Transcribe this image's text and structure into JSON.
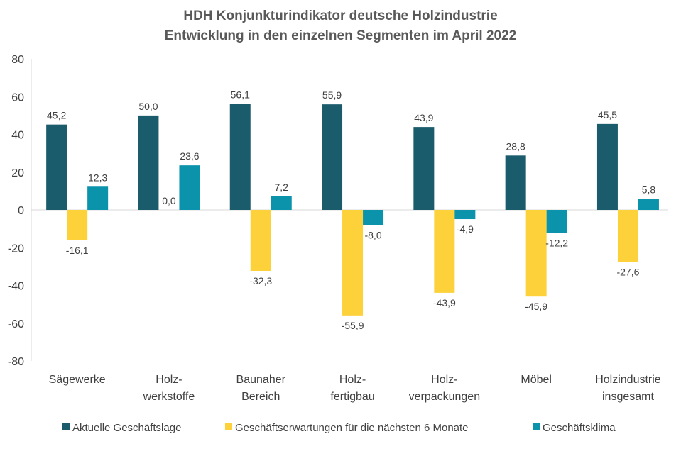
{
  "chart_data": {
    "type": "bar",
    "title": [
      "HDH Konjunkturindikator deutsche Holzindustrie",
      "Entwicklung in den einzelnen Segmenten im April 2022"
    ],
    "categories": [
      [
        "Sägewerke"
      ],
      [
        "Holz-",
        "werkstoffe"
      ],
      [
        "Baunaher",
        "Bereich"
      ],
      [
        "Holz-",
        "fertigbau"
      ],
      [
        "Holz-",
        "verpackungen"
      ],
      [
        "Möbel"
      ],
      [
        "Holzindustrie",
        "insgesamt"
      ]
    ],
    "series": [
      {
        "name": "Aktuelle Geschäftslage",
        "color": "#1a5c6b",
        "values": [
          45.2,
          50.0,
          56.1,
          55.9,
          43.9,
          28.8,
          45.5
        ]
      },
      {
        "name": "Geschäftserwartungen für die nächsten 6 Monate",
        "color": "#fdd13a",
        "values": [
          -16.1,
          0.0,
          -32.3,
          -55.9,
          -43.9,
          -45.9,
          -27.6
        ]
      },
      {
        "name": "Geschäftsklima",
        "color": "#0a93ab",
        "values": [
          12.3,
          23.6,
          7.2,
          -8.0,
          -4.9,
          -12.2,
          5.8
        ]
      }
    ],
    "data_labels": [
      [
        "45,2",
        "50,0",
        "56,1",
        "55,9",
        "43,9",
        "28,8",
        "45,5"
      ],
      [
        "-16,1",
        "0,0",
        "-32,3",
        "-55,9",
        "-43,9",
        "-45,9",
        "-27,6"
      ],
      [
        "12,3",
        "23,6",
        "7,2",
        "-8,0",
        "-4,9",
        "-12,2",
        "5,8"
      ]
    ],
    "y_ticks": [
      80,
      60,
      40,
      20,
      0,
      -20,
      -40,
      -60,
      -80
    ],
    "ylim": [
      -80,
      80
    ],
    "grid": false,
    "legend_position": "bottom"
  }
}
